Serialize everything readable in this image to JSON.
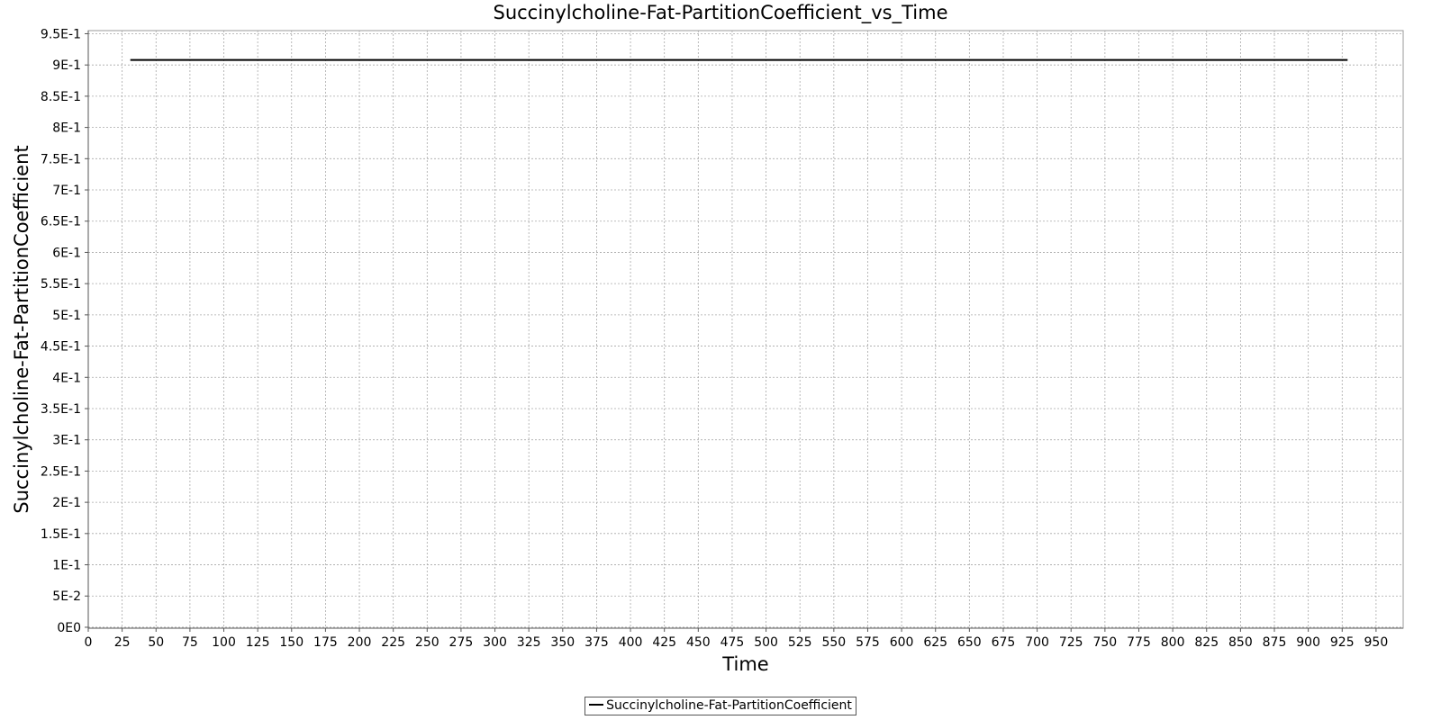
{
  "chart_data": {
    "type": "line",
    "title": "Succinylcholine-Fat-PartitionCoefficient_vs_Time",
    "xlabel": "Time",
    "ylabel": "Succinylcholine-Fat-PartitionCoefficient",
    "xlim": [
      0,
      970
    ],
    "ylim": [
      -0.0015,
      0.955
    ],
    "x_ticks": [
      0,
      25,
      50,
      75,
      100,
      125,
      150,
      175,
      200,
      225,
      250,
      275,
      300,
      325,
      350,
      375,
      400,
      425,
      450,
      475,
      500,
      525,
      550,
      575,
      600,
      625,
      650,
      675,
      700,
      725,
      750,
      775,
      800,
      825,
      850,
      875,
      900,
      925,
      950
    ],
    "y_ticks": [
      0,
      0.05,
      0.1,
      0.15,
      0.2,
      0.25,
      0.3,
      0.35,
      0.4,
      0.45,
      0.5,
      0.55,
      0.6,
      0.65,
      0.7,
      0.75,
      0.8,
      0.85,
      0.9,
      0.95
    ],
    "y_tick_labels": [
      "0E0",
      "5E-2",
      "1E-1",
      "1.5E-1",
      "2E-1",
      "2.5E-1",
      "3E-1",
      "3.5E-1",
      "4E-1",
      "4.5E-1",
      "5E-1",
      "5.5E-1",
      "6E-1",
      "6.5E-1",
      "7E-1",
      "7.5E-1",
      "8E-1",
      "8.5E-1",
      "9E-1",
      "9.5E-1"
    ],
    "grid": true,
    "legend_position": "bottom-center",
    "series": [
      {
        "name": "Succinylcholine-Fat-PartitionCoefficient",
        "color": "#000000",
        "x": [
          31,
          100,
          200,
          300,
          400,
          500,
          600,
          700,
          800,
          900,
          929
        ],
        "y": [
          0.908,
          0.908,
          0.908,
          0.908,
          0.908,
          0.908,
          0.908,
          0.908,
          0.908,
          0.908,
          0.908
        ]
      }
    ]
  }
}
